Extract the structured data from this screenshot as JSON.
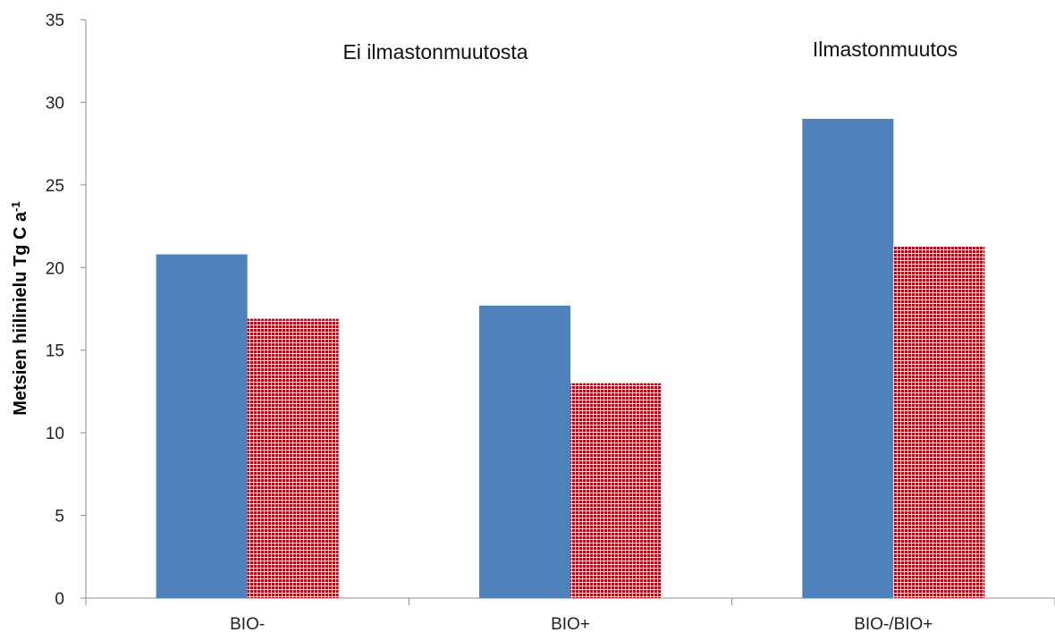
{
  "chart_data": {
    "type": "bar",
    "categories": [
      "BIO-",
      "BIO+",
      "BIO-/BIO+"
    ],
    "series": [
      {
        "values": [
          20.8,
          17.7,
          29.0
        ],
        "color": "#4F81BD",
        "pattern": "solid"
      },
      {
        "values": [
          16.9,
          13.0,
          21.3
        ],
        "color": "#C0000B",
        "pattern": "white-grid"
      }
    ],
    "ylabel": "Metsien hiilinielu Tg C a",
    "ylabel_superscript": "-1",
    "ylim": [
      0,
      35
    ],
    "yticks": [
      0,
      5,
      10,
      15,
      20,
      25,
      30,
      35
    ],
    "grid": false,
    "legend": "none",
    "annotations": [
      {
        "text": "Ei ilmastonmuutosta",
        "over": "BIO- to BIO+"
      },
      {
        "text": "Ilmastonmuutos",
        "over": "BIO-/BIO+"
      }
    ]
  }
}
